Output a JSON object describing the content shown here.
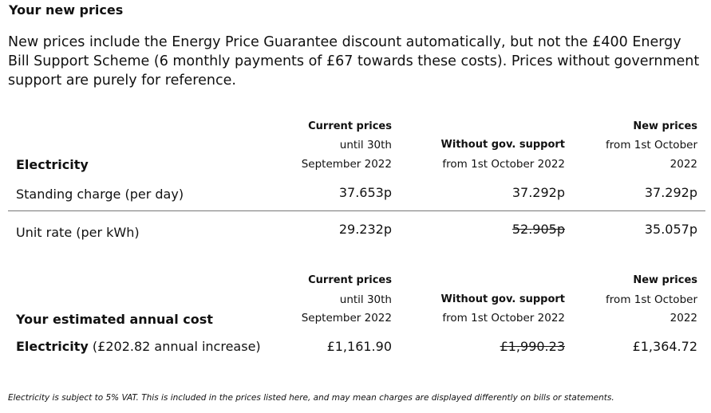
{
  "title": "Your new prices",
  "intro": "New prices include the Energy Price Guarantee discount automatically, but not the £400 Energy Bill Support Scheme (6 monthly payments of £67 towards these costs). Prices without government support are purely for reference.",
  "table1": {
    "section_label": "Electricity",
    "col_current": {
      "heading": "Current prices",
      "line2": "until 30th",
      "line3": "September 2022"
    },
    "col_without": {
      "heading": "Without gov. support",
      "line2": "from 1st October 2022"
    },
    "col_new": {
      "heading": "New prices",
      "line2": "from 1st October",
      "line3": "2022"
    },
    "rows": [
      {
        "label": "Standing charge (per day)",
        "current": "37.653p",
        "without": "37.292p",
        "new": "37.292p"
      },
      {
        "label": "Unit rate (per kWh)",
        "current": "29.232p",
        "without": "52.905p",
        "new": "35.057p"
      }
    ]
  },
  "table2": {
    "section_label": "Your estimated annual cost",
    "col_current": {
      "heading": "Current prices",
      "line2": "until 30th",
      "line3": "September 2022"
    },
    "col_without": {
      "heading": "Without gov. support",
      "line2": "from 1st October 2022"
    },
    "col_new": {
      "heading": "New prices",
      "line2": "from 1st October",
      "line3": "2022"
    },
    "row": {
      "label_bold": "Electricity",
      "label_rest": " (£202.82 annual increase)",
      "current": "£1,161.90",
      "without": "£1,990.23",
      "new": "£1,364.72"
    }
  },
  "footnote": "Electricity is subject to 5% VAT. This is included in the prices listed here, and may mean charges are displayed differently on bills or statements."
}
